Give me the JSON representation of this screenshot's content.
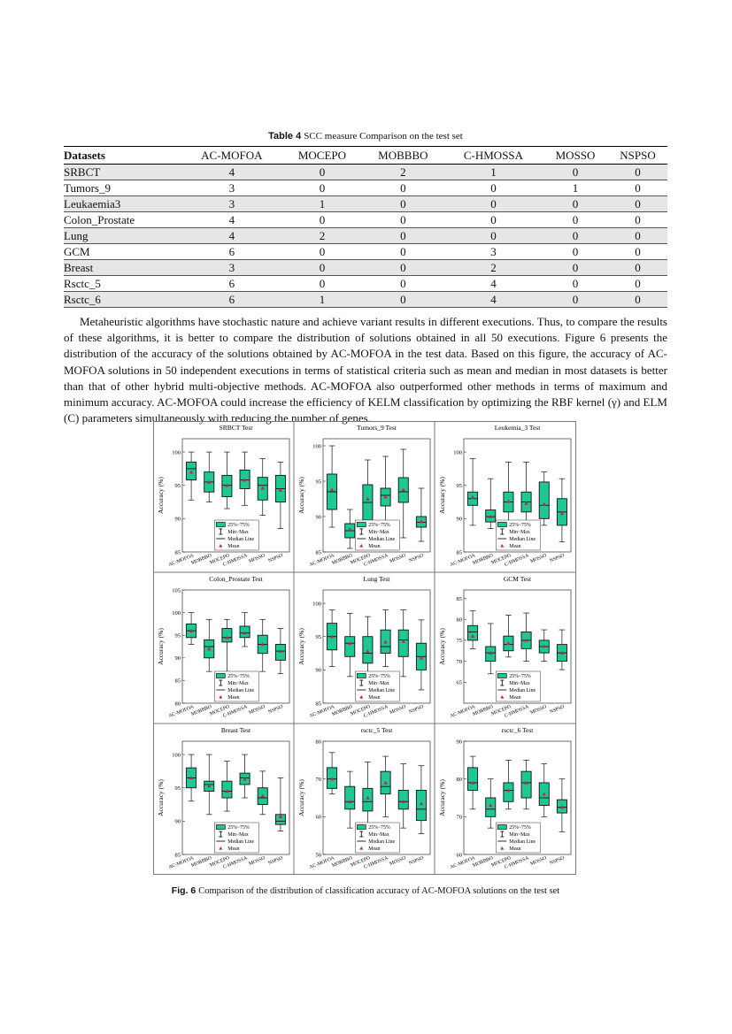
{
  "table": {
    "label": "Table 4",
    "caption": "SCC measure Comparison on the test set",
    "columns": [
      "Datasets",
      "AC-MOFOA",
      "MOCEPO",
      "MOBBBO",
      "C-HMOSSA",
      "MOSSO",
      "NSPSO"
    ],
    "rows": [
      [
        "SRBCT",
        4,
        0,
        2,
        1,
        0,
        0
      ],
      [
        "Tumors_9",
        3,
        0,
        0,
        0,
        1,
        0
      ],
      [
        "Leukaemia3",
        3,
        1,
        0,
        0,
        0,
        0
      ],
      [
        "Colon_Prostate",
        4,
        0,
        0,
        0,
        0,
        0
      ],
      [
        "Lung",
        4,
        2,
        0,
        0,
        0,
        0
      ],
      [
        "GCM",
        6,
        0,
        0,
        3,
        0,
        0
      ],
      [
        "Breast",
        3,
        0,
        0,
        2,
        0,
        0
      ],
      [
        "Rsctc_5",
        6,
        0,
        0,
        4,
        0,
        0
      ],
      [
        "Rsctc_6",
        6,
        1,
        0,
        4,
        0,
        0
      ]
    ]
  },
  "paragraph": "Metaheuristic algorithms have stochastic nature and achieve variant results in different executions. Thus, to compare the results of these algorithms, it is better to compare the distribution of solutions obtained in all 50 executions. Figure 6 presents the distribution of the accuracy of the solutions obtained by AC-MOFOA in the test data. Based on this figure, the accuracy of AC-MOFOA solutions in 50 independent executions in terms of statistical criteria such as mean and median in most datasets is better than that of other hybrid multi-objective methods. AC-MOFOA also outperformed other methods in terms of maximum and minimum accuracy. AC-MOFOA could increase the efficiency of KELM classification by optimizing the RBF kernel (γ) and ELM (C) parameters simultaneously with reducing the number of genes.",
  "figure": {
    "label": "Fig. 6",
    "caption": "Comparison of the distribution of classification accuracy of AC-MOFOA solutions on the test set",
    "legend": [
      "25%~75%",
      "Min~Max",
      "Median Line",
      "Mean"
    ],
    "box_color": "#1dc894",
    "mean_color": "#d81e3c"
  },
  "chart_data": [
    {
      "type": "box",
      "title": "SRBCT Test",
      "ylabel": "Accuracy (%)",
      "categories": [
        "AC-MOFOA",
        "MOBBBO",
        "MOCEPO",
        "C-HMOSSA",
        "MOSSO",
        "NSPSO"
      ],
      "ylim": [
        85,
        102
      ],
      "yticks": [
        85,
        90,
        95,
        100
      ],
      "min": [
        92.8,
        92.5,
        91.5,
        92,
        90.5,
        88.5
      ],
      "q1": [
        95.8,
        94,
        93.3,
        94.5,
        92.8,
        92.5
      ],
      "median": [
        97.5,
        95.5,
        95,
        95.8,
        95,
        94.5
      ],
      "q3": [
        98.5,
        97,
        96.5,
        97.3,
        96.2,
        96.5
      ],
      "max": [
        100,
        100,
        100,
        100,
        99,
        98.5
      ],
      "mean": [
        97,
        95.5,
        95,
        95.8,
        94.6,
        94.3
      ]
    },
    {
      "type": "box",
      "title": "Tumors_9 Test",
      "ylabel": "Accuracy (%)",
      "categories": [
        "AC-MOFOA",
        "MOBBBO",
        "MOCEPO",
        "C-HMOSSA",
        "MOSSO",
        "NSPSO"
      ],
      "ylim": [
        85,
        101
      ],
      "yticks": [
        85,
        90,
        95,
        100
      ],
      "min": [
        88.5,
        85.5,
        87.5,
        85.8,
        87,
        86.5
      ],
      "q1": [
        91,
        87,
        89.5,
        91.5,
        92,
        88.5
      ],
      "median": [
        93.5,
        88,
        92,
        93,
        93.5,
        89.2
      ],
      "q3": [
        96,
        89,
        94.5,
        94,
        95.5,
        90
      ],
      "max": [
        100,
        91,
        98,
        98.5,
        99.5,
        94
      ],
      "mean": [
        93.8,
        88.2,
        92.5,
        92.8,
        93.8,
        89.3
      ]
    },
    {
      "type": "box",
      "title": "Leukemia_3 Test",
      "ylabel": "Accuracy (%)",
      "categories": [
        "AC-MOFOA",
        "MOBBBO",
        "MOCEPO",
        "C-HMOSSA",
        "MOSSO",
        "NSPSO"
      ],
      "ylim": [
        85,
        102
      ],
      "yticks": [
        85,
        90,
        95,
        100
      ],
      "min": [
        89,
        88.5,
        89.5,
        89,
        89,
        86.5
      ],
      "q1": [
        92,
        89.5,
        91,
        91,
        90,
        89
      ],
      "median": [
        93,
        90.3,
        92.5,
        92.5,
        92,
        91
      ],
      "q3": [
        94,
        91.3,
        94,
        94,
        95.5,
        93
      ],
      "max": [
        99,
        96,
        98.5,
        98.5,
        97,
        96
      ],
      "mean": [
        93.2,
        90.3,
        92.6,
        92.3,
        92.2,
        90.8
      ]
    },
    {
      "type": "box",
      "title": "Colon_Prostate Test",
      "ylabel": "Accuracy (%)",
      "categories": [
        "AC-MOFOA",
        "MOBBBO",
        "MOCEPO",
        "C-HMOSSA",
        "MOSSO",
        "NSPSO"
      ],
      "ylim": [
        80,
        105
      ],
      "yticks": [
        80,
        85,
        90,
        95,
        100,
        105
      ],
      "min": [
        93,
        87,
        87,
        92.5,
        87,
        86.5
      ],
      "q1": [
        94.5,
        90,
        93.5,
        94.5,
        91,
        89.5
      ],
      "median": [
        96,
        92.5,
        94.5,
        95.5,
        93,
        91.5
      ],
      "q3": [
        97.5,
        94,
        96.5,
        97,
        95,
        93
      ],
      "max": [
        100,
        98.5,
        98.5,
        100,
        98.5,
        96.5
      ],
      "mean": [
        96,
        92,
        94.5,
        95.5,
        93,
        91.5
      ]
    },
    {
      "type": "box",
      "title": "Lung Test",
      "ylabel": "Accuracy (%)",
      "categories": [
        "AC-MOFOA",
        "MOBBBO",
        "MOCEPO",
        "C-HMOSSA",
        "MOSSO",
        "NSPSO"
      ],
      "ylim": [
        85,
        102
      ],
      "yticks": [
        85,
        90,
        95,
        100
      ],
      "min": [
        90.5,
        89,
        89.5,
        90.5,
        89,
        87
      ],
      "q1": [
        93,
        92,
        91,
        92.5,
        92,
        90
      ],
      "median": [
        95,
        94,
        92.5,
        93.5,
        94.5,
        92
      ],
      "q3": [
        97,
        95,
        95,
        96,
        96,
        94
      ],
      "max": [
        99,
        98.5,
        98,
        99,
        99,
        97.5
      ],
      "mean": [
        95,
        94,
        92.8,
        94.2,
        94.3,
        91.8
      ]
    },
    {
      "type": "box",
      "title": "GCM Test",
      "ylabel": "Accuracy (%)",
      "categories": [
        "AC-MOFOA",
        "MOBBBO",
        "MOCEPO",
        "C-HMOSSA",
        "MOSSO",
        "NSPSO"
      ],
      "ylim": [
        60,
        87
      ],
      "yticks": [
        65,
        70,
        75,
        80,
        85
      ],
      "min": [
        73,
        67,
        71,
        70,
        70,
        68
      ],
      "q1": [
        75,
        70,
        72.5,
        73,
        72,
        70
      ],
      "median": [
        77,
        72,
        74,
        75,
        73.5,
        72
      ],
      "q3": [
        78.5,
        73.5,
        76,
        77,
        75,
        74
      ],
      "max": [
        82,
        79,
        81,
        81.5,
        77.5,
        77.5
      ],
      "mean": [
        76,
        72,
        74.3,
        75,
        73.6,
        72
      ]
    },
    {
      "type": "box",
      "title": "Breast Test",
      "ylabel": "Accuracy (%)",
      "categories": [
        "AC-MOFOA",
        "MOBBBO",
        "MOCEPO",
        "C-HMOSSA",
        "MOSSO",
        "NSPSO"
      ],
      "ylim": [
        85,
        102
      ],
      "yticks": [
        85,
        90,
        95,
        100
      ],
      "min": [
        93,
        91,
        91.5,
        93.5,
        91,
        88.5
      ],
      "q1": [
        95,
        94.5,
        93.5,
        95.5,
        92.5,
        89.5
      ],
      "median": [
        96.5,
        95.5,
        94.5,
        96.5,
        93.5,
        90
      ],
      "q3": [
        98,
        96,
        96,
        97.2,
        95,
        91
      ],
      "max": [
        100,
        100,
        99,
        100,
        97.5,
        96.5
      ],
      "mean": [
        96.5,
        95.3,
        94.5,
        96.3,
        93.8,
        90.7
      ]
    },
    {
      "type": "box",
      "title": "rsctc_5 Test",
      "ylabel": "Accuracy (%)",
      "categories": [
        "AC-MOFOA",
        "MOBBBO",
        "MOCEPO",
        "C-HMOSSA",
        "MOSSO",
        "NSPSO"
      ],
      "ylim": [
        50,
        80
      ],
      "yticks": [
        50,
        60,
        70,
        80
      ],
      "min": [
        66,
        57,
        57,
        60,
        57,
        55.5
      ],
      "q1": [
        67.5,
        62,
        61.5,
        66,
        62,
        59
      ],
      "median": [
        70,
        64,
        64,
        68,
        64,
        62
      ],
      "q3": [
        73,
        68,
        67.5,
        72,
        67,
        67
      ],
      "max": [
        77,
        72,
        74.5,
        76,
        74,
        73.5
      ],
      "mean": [
        70,
        64,
        65,
        69,
        64,
        63.5
      ]
    },
    {
      "type": "box",
      "title": "rsctc_6 Test",
      "ylabel": "Accuracy (%)",
      "categories": [
        "AC-MOFOA",
        "MOBBBO",
        "MOCEPO",
        "C-HMOSSA",
        "MOSSO",
        "NSPSO"
      ],
      "ylim": [
        60,
        90
      ],
      "yticks": [
        60,
        70,
        80,
        90
      ],
      "min": [
        72,
        67,
        72,
        72,
        70,
        66
      ],
      "q1": [
        77,
        70,
        74,
        75,
        73,
        71
      ],
      "median": [
        79,
        72,
        77,
        79,
        75,
        72.5
      ],
      "q3": [
        83,
        75,
        79,
        82,
        79,
        74.5
      ],
      "max": [
        86,
        80,
        85,
        85,
        84,
        80
      ],
      "mean": [
        79,
        73,
        77,
        79,
        76,
        72.5
      ]
    }
  ]
}
